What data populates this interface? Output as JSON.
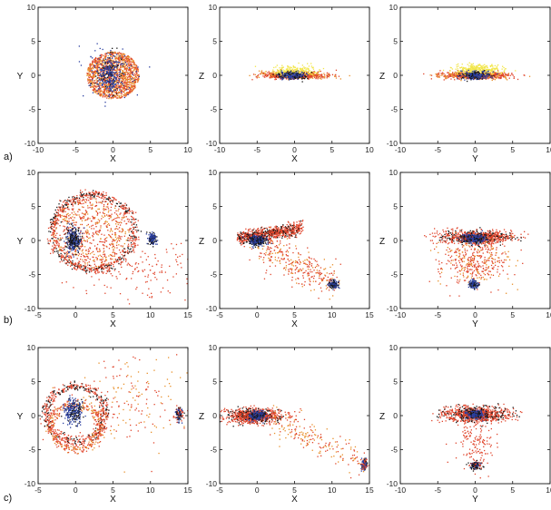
{
  "row_labels": [
    "a)",
    "b)",
    "c)"
  ],
  "colors": {
    "red": "#e0452c",
    "orange": "#e8902a",
    "blue": "#2a3fa0",
    "black": "#141414",
    "yellow": "#f2e64a",
    "frame": "#111111"
  },
  "chart_data": [
    {
      "type": "scatter",
      "row": "a)",
      "xlabel": "X",
      "ylabel": "Y",
      "xlim": [
        -10,
        10
      ],
      "ylim": [
        -10,
        10
      ],
      "xticks": [
        -10,
        -5,
        0,
        5,
        10
      ],
      "yticks": [
        -10,
        -5,
        0,
        5,
        10
      ],
      "clouds": [
        {
          "kind": "disk",
          "cx": 0,
          "cy": 0,
          "r": 3.5,
          "n": 1400,
          "colors": [
            "red",
            "orange",
            "orange",
            "red"
          ]
        },
        {
          "kind": "gauss",
          "cx": -0.5,
          "cy": 0,
          "sx": 0.9,
          "sy": 1.4,
          "n": 260,
          "colors": [
            "blue",
            "black",
            "blue"
          ]
        },
        {
          "kind": "gauss",
          "cx": -0.2,
          "cy": 0.3,
          "sx": 1.6,
          "sy": 1.6,
          "n": 120,
          "colors": [
            "blue"
          ]
        }
      ]
    },
    {
      "type": "scatter",
      "row": "a)",
      "xlabel": "X",
      "ylabel": "Z",
      "xlim": [
        -10,
        10
      ],
      "ylim": [
        -10,
        10
      ],
      "xticks": [
        -10,
        -5,
        0,
        5,
        10
      ],
      "yticks": [
        -10,
        -5,
        0,
        5,
        10
      ],
      "clouds": [
        {
          "kind": "gauss",
          "cx": 0,
          "cy": 0,
          "sx": 2.1,
          "sy": 0.25,
          "n": 900,
          "colors": [
            "red",
            "orange",
            "red"
          ]
        },
        {
          "kind": "gauss",
          "cx": 0,
          "cy": 0.6,
          "sx": 1.4,
          "sy": 0.35,
          "n": 260,
          "colors": [
            "yellow"
          ]
        },
        {
          "kind": "gauss",
          "cx": -0.3,
          "cy": 0,
          "sx": 0.9,
          "sy": 0.3,
          "n": 260,
          "colors": [
            "blue",
            "black",
            "blue"
          ]
        }
      ]
    },
    {
      "type": "scatter",
      "row": "a)",
      "xlabel": "Y",
      "ylabel": "Z",
      "xlim": [
        -10,
        10
      ],
      "ylim": [
        -10,
        10
      ],
      "xticks": [
        -10,
        -5,
        0,
        5,
        10
      ],
      "yticks": [
        -10,
        -5,
        0,
        5,
        10
      ],
      "clouds": [
        {
          "kind": "gauss",
          "cx": 0,
          "cy": 0,
          "sx": 2.1,
          "sy": 0.25,
          "n": 900,
          "colors": [
            "red",
            "orange",
            "red"
          ]
        },
        {
          "kind": "gauss",
          "cx": 0.3,
          "cy": 0.8,
          "sx": 1.6,
          "sy": 0.4,
          "n": 320,
          "colors": [
            "yellow"
          ]
        },
        {
          "kind": "gauss",
          "cx": 0,
          "cy": 0,
          "sx": 0.9,
          "sy": 0.3,
          "n": 260,
          "colors": [
            "blue",
            "black",
            "blue"
          ]
        }
      ]
    },
    {
      "type": "scatter",
      "row": "b)",
      "xlabel": "X",
      "ylabel": "Y",
      "xlim": [
        -5,
        15
      ],
      "ylim": [
        -10,
        10
      ],
      "xticks": [
        -5,
        0,
        5,
        10,
        15
      ],
      "yticks": [
        -10,
        -5,
        0,
        5,
        10
      ],
      "clouds": [
        {
          "kind": "ring",
          "cx": 2.3,
          "cy": 1.2,
          "r": 5.5,
          "w": 0.35,
          "n": 700,
          "colors": [
            "red",
            "red",
            "black"
          ]
        },
        {
          "kind": "disk",
          "cx": 2.0,
          "cy": 1.0,
          "r": 5.2,
          "n": 700,
          "colors": [
            "red",
            "orange",
            "red"
          ]
        },
        {
          "kind": "gauss",
          "cx": 10.3,
          "cy": -4.5,
          "sx": 5.0,
          "sy": 2.2,
          "n": 150,
          "colors": [
            "red"
          ]
        },
        {
          "kind": "gauss",
          "cx": -0.3,
          "cy": 0,
          "sx": 0.5,
          "sy": 0.9,
          "n": 300,
          "colors": [
            "blue",
            "black",
            "black",
            "blue"
          ]
        },
        {
          "kind": "gauss",
          "cx": 10.2,
          "cy": 0.3,
          "sx": 0.3,
          "sy": 0.45,
          "n": 120,
          "colors": [
            "blue",
            "black",
            "blue"
          ]
        }
      ]
    },
    {
      "type": "scatter",
      "row": "b)",
      "xlabel": "X",
      "ylabel": "Z",
      "xlim": [
        -5,
        15
      ],
      "ylim": [
        -10,
        10
      ],
      "xticks": [
        -5,
        0,
        5,
        10,
        15
      ],
      "yticks": [
        -10,
        -5,
        0,
        5,
        10
      ],
      "clouds": [
        {
          "kind": "line",
          "x0": -2.5,
          "y0": 0.3,
          "x1": 6,
          "y1": 1.8,
          "w": 0.45,
          "n": 800,
          "colors": [
            "red",
            "red",
            "black",
            "red"
          ]
        },
        {
          "kind": "line",
          "x0": 0,
          "y0": -0.5,
          "x1": 10.3,
          "y1": -6.2,
          "w": 1.3,
          "n": 350,
          "colors": [
            "red",
            "red",
            "orange"
          ]
        },
        {
          "kind": "gauss",
          "cx": 0,
          "cy": 0,
          "sx": 0.6,
          "sy": 0.35,
          "n": 300,
          "colors": [
            "blue",
            "black",
            "black",
            "blue"
          ]
        },
        {
          "kind": "gauss",
          "cx": 10.3,
          "cy": -6.4,
          "sx": 0.35,
          "sy": 0.35,
          "n": 120,
          "colors": [
            "blue",
            "black",
            "blue"
          ]
        }
      ]
    },
    {
      "type": "scatter",
      "row": "b)",
      "xlabel": "Y",
      "ylabel": "Z",
      "xlim": [
        -10,
        10
      ],
      "ylim": [
        -10,
        10
      ],
      "xticks": [
        -10,
        -5,
        0,
        5,
        10
      ],
      "yticks": [
        -10,
        -5,
        0,
        5,
        10
      ],
      "clouds": [
        {
          "kind": "gauss",
          "cx": 0.3,
          "cy": 0.5,
          "sx": 2.3,
          "sy": 0.45,
          "n": 900,
          "colors": [
            "red",
            "black",
            "red",
            "red"
          ]
        },
        {
          "kind": "gauss",
          "cx": 0,
          "cy": -3.0,
          "sx": 2.4,
          "sy": 1.8,
          "n": 420,
          "colors": [
            "red",
            "orange",
            "red"
          ]
        },
        {
          "kind": "gauss",
          "cx": 0,
          "cy": 0.3,
          "sx": 0.8,
          "sy": 0.35,
          "n": 260,
          "colors": [
            "blue",
            "black",
            "blue"
          ]
        },
        {
          "kind": "gauss",
          "cx": -0.2,
          "cy": -6.5,
          "sx": 0.35,
          "sy": 0.3,
          "n": 120,
          "colors": [
            "blue",
            "black",
            "blue"
          ]
        }
      ]
    },
    {
      "type": "scatter",
      "row": "c)",
      "xlabel": "X",
      "ylabel": "Y",
      "xlim": [
        -5,
        15
      ],
      "ylim": [
        -10,
        10
      ],
      "xticks": [
        -5,
        0,
        5,
        10,
        15
      ],
      "yticks": [
        -10,
        -5,
        0,
        5,
        10
      ],
      "clouds": [
        {
          "kind": "ring",
          "cx": 0,
          "cy": 0.3,
          "r": 4.0,
          "w": 0.35,
          "n": 500,
          "colors": [
            "red",
            "black",
            "red"
          ]
        },
        {
          "kind": "ring",
          "cx": 0,
          "cy": -1.6,
          "r": 3.3,
          "w": 0.35,
          "n": 420,
          "colors": [
            "red",
            "red",
            "orange"
          ]
        },
        {
          "kind": "gauss",
          "cx": 7,
          "cy": 2.5,
          "sx": 4.0,
          "sy": 3.0,
          "n": 180,
          "colors": [
            "red",
            "orange"
          ]
        },
        {
          "kind": "gauss",
          "cx": -0.3,
          "cy": 0.7,
          "sx": 0.6,
          "sy": 0.9,
          "n": 260,
          "colors": [
            "blue",
            "black",
            "blue"
          ]
        },
        {
          "kind": "gauss",
          "cx": 13.8,
          "cy": 0.2,
          "sx": 0.25,
          "sy": 0.55,
          "n": 110,
          "colors": [
            "blue",
            "black",
            "red"
          ]
        }
      ]
    },
    {
      "type": "scatter",
      "row": "c)",
      "xlabel": "X",
      "ylabel": "Z",
      "xlim": [
        -5,
        15
      ],
      "ylim": [
        -10,
        10
      ],
      "xticks": [
        -5,
        0,
        5,
        10,
        15
      ],
      "yticks": [
        -10,
        -5,
        0,
        5,
        10
      ],
      "clouds": [
        {
          "kind": "gauss",
          "cx": -0.5,
          "cy": 0,
          "sx": 1.9,
          "sy": 0.55,
          "n": 900,
          "colors": [
            "red",
            "black",
            "red",
            "red"
          ]
        },
        {
          "kind": "line",
          "x0": 2,
          "y0": -0.5,
          "x1": 14.3,
          "y1": -7.0,
          "w": 1.1,
          "n": 200,
          "colors": [
            "red",
            "orange"
          ]
        },
        {
          "kind": "gauss",
          "cx": 0,
          "cy": 0,
          "sx": 0.6,
          "sy": 0.35,
          "n": 220,
          "colors": [
            "blue",
            "black",
            "blue"
          ]
        },
        {
          "kind": "gauss",
          "cx": 14.3,
          "cy": -7.2,
          "sx": 0.2,
          "sy": 0.4,
          "n": 110,
          "colors": [
            "blue",
            "black",
            "red"
          ]
        }
      ]
    },
    {
      "type": "scatter",
      "row": "c)",
      "xlabel": "Y",
      "ylabel": "Z",
      "xlim": [
        -10,
        10
      ],
      "ylim": [
        -10,
        10
      ],
      "xticks": [
        -10,
        -5,
        0,
        5,
        10
      ],
      "yticks": [
        -10,
        -5,
        0,
        5,
        10
      ],
      "clouds": [
        {
          "kind": "gauss",
          "cx": 0,
          "cy": 0.2,
          "sx": 2.2,
          "sy": 0.55,
          "n": 900,
          "colors": [
            "red",
            "black",
            "red",
            "red"
          ]
        },
        {
          "kind": "gauss",
          "cx": 0,
          "cy": -4.0,
          "sx": 1.3,
          "sy": 2.0,
          "n": 150,
          "colors": [
            "red"
          ]
        },
        {
          "kind": "gauss",
          "cx": 0,
          "cy": 0.2,
          "sx": 0.7,
          "sy": 0.35,
          "n": 220,
          "colors": [
            "blue",
            "black",
            "blue"
          ]
        },
        {
          "kind": "gauss",
          "cx": 0,
          "cy": -7.3,
          "sx": 0.45,
          "sy": 0.3,
          "n": 130,
          "colors": [
            "blue",
            "black",
            "black",
            "red"
          ]
        }
      ]
    }
  ]
}
